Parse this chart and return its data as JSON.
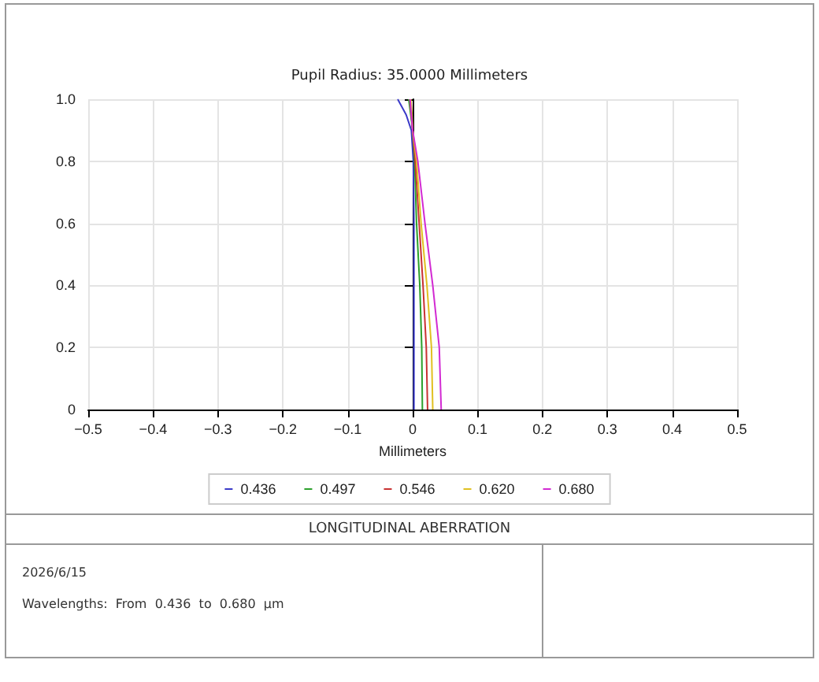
{
  "chart_data": {
    "type": "line",
    "title": "Pupil Radius: 35.0000 Millimeters",
    "xlabel": "Millimeters",
    "xlim": [
      -0.5,
      0.5
    ],
    "xticks": [
      -0.5,
      -0.4,
      -0.3,
      -0.2,
      -0.1,
      0,
      0.1,
      0.2,
      0.3,
      0.4,
      0.5
    ],
    "ylim": [
      0,
      1
    ],
    "yticks": [
      0,
      0.2,
      0.4,
      0.6,
      0.8,
      {
        "value": 1,
        "label": "1.0"
      }
    ],
    "grid": true,
    "legend": "bottom",
    "marker": "none",
    "line_style": "solid",
    "series": [
      {
        "name": "0.436",
        "color": "#3a3ac8",
        "x": [
          0.002,
          0.002,
          0.002,
          0.002,
          0.001,
          -0.002,
          -0.01,
          -0.023
        ],
        "values": [
          0,
          0.2,
          0.4,
          0.6,
          0.8,
          0.9,
          0.95,
          1
        ]
      },
      {
        "name": "0.497",
        "color": "#2ca02c",
        "x": [
          0.015,
          0.014,
          0.011,
          0.006,
          0.003,
          0,
          -0.003,
          -0.006
        ],
        "values": [
          0,
          0.2,
          0.4,
          0.6,
          0.8,
          0.9,
          0.95,
          1
        ]
      },
      {
        "name": "0.546",
        "color": "#c83232",
        "x": [
          0.023,
          0.021,
          0.016,
          0.01,
          0.004,
          0,
          -0.002,
          -0.004
        ],
        "values": [
          0,
          0.2,
          0.4,
          0.6,
          0.8,
          0.9,
          0.95,
          1
        ]
      },
      {
        "name": "0.620",
        "color": "#e0c020",
        "x": [
          0.031,
          0.029,
          0.022,
          0.013,
          0.006,
          0,
          -0.001,
          -0.003
        ],
        "values": [
          0,
          0.2,
          0.4,
          0.6,
          0.8,
          0.9,
          0.95,
          1
        ]
      },
      {
        "name": "0.680",
        "color": "#d22ad2",
        "x": [
          0.044,
          0.041,
          0.031,
          0.019,
          0.008,
          0,
          -0.002,
          -0.004
        ],
        "values": [
          0,
          0.2,
          0.4,
          0.6,
          0.8,
          0.9,
          0.95,
          1
        ]
      }
    ],
    "annotations": [
      "LONGITUDINAL ABERRATION",
      "2026/6/15",
      "Wavelengths:  From  0.436  to  0.680  µm"
    ]
  }
}
